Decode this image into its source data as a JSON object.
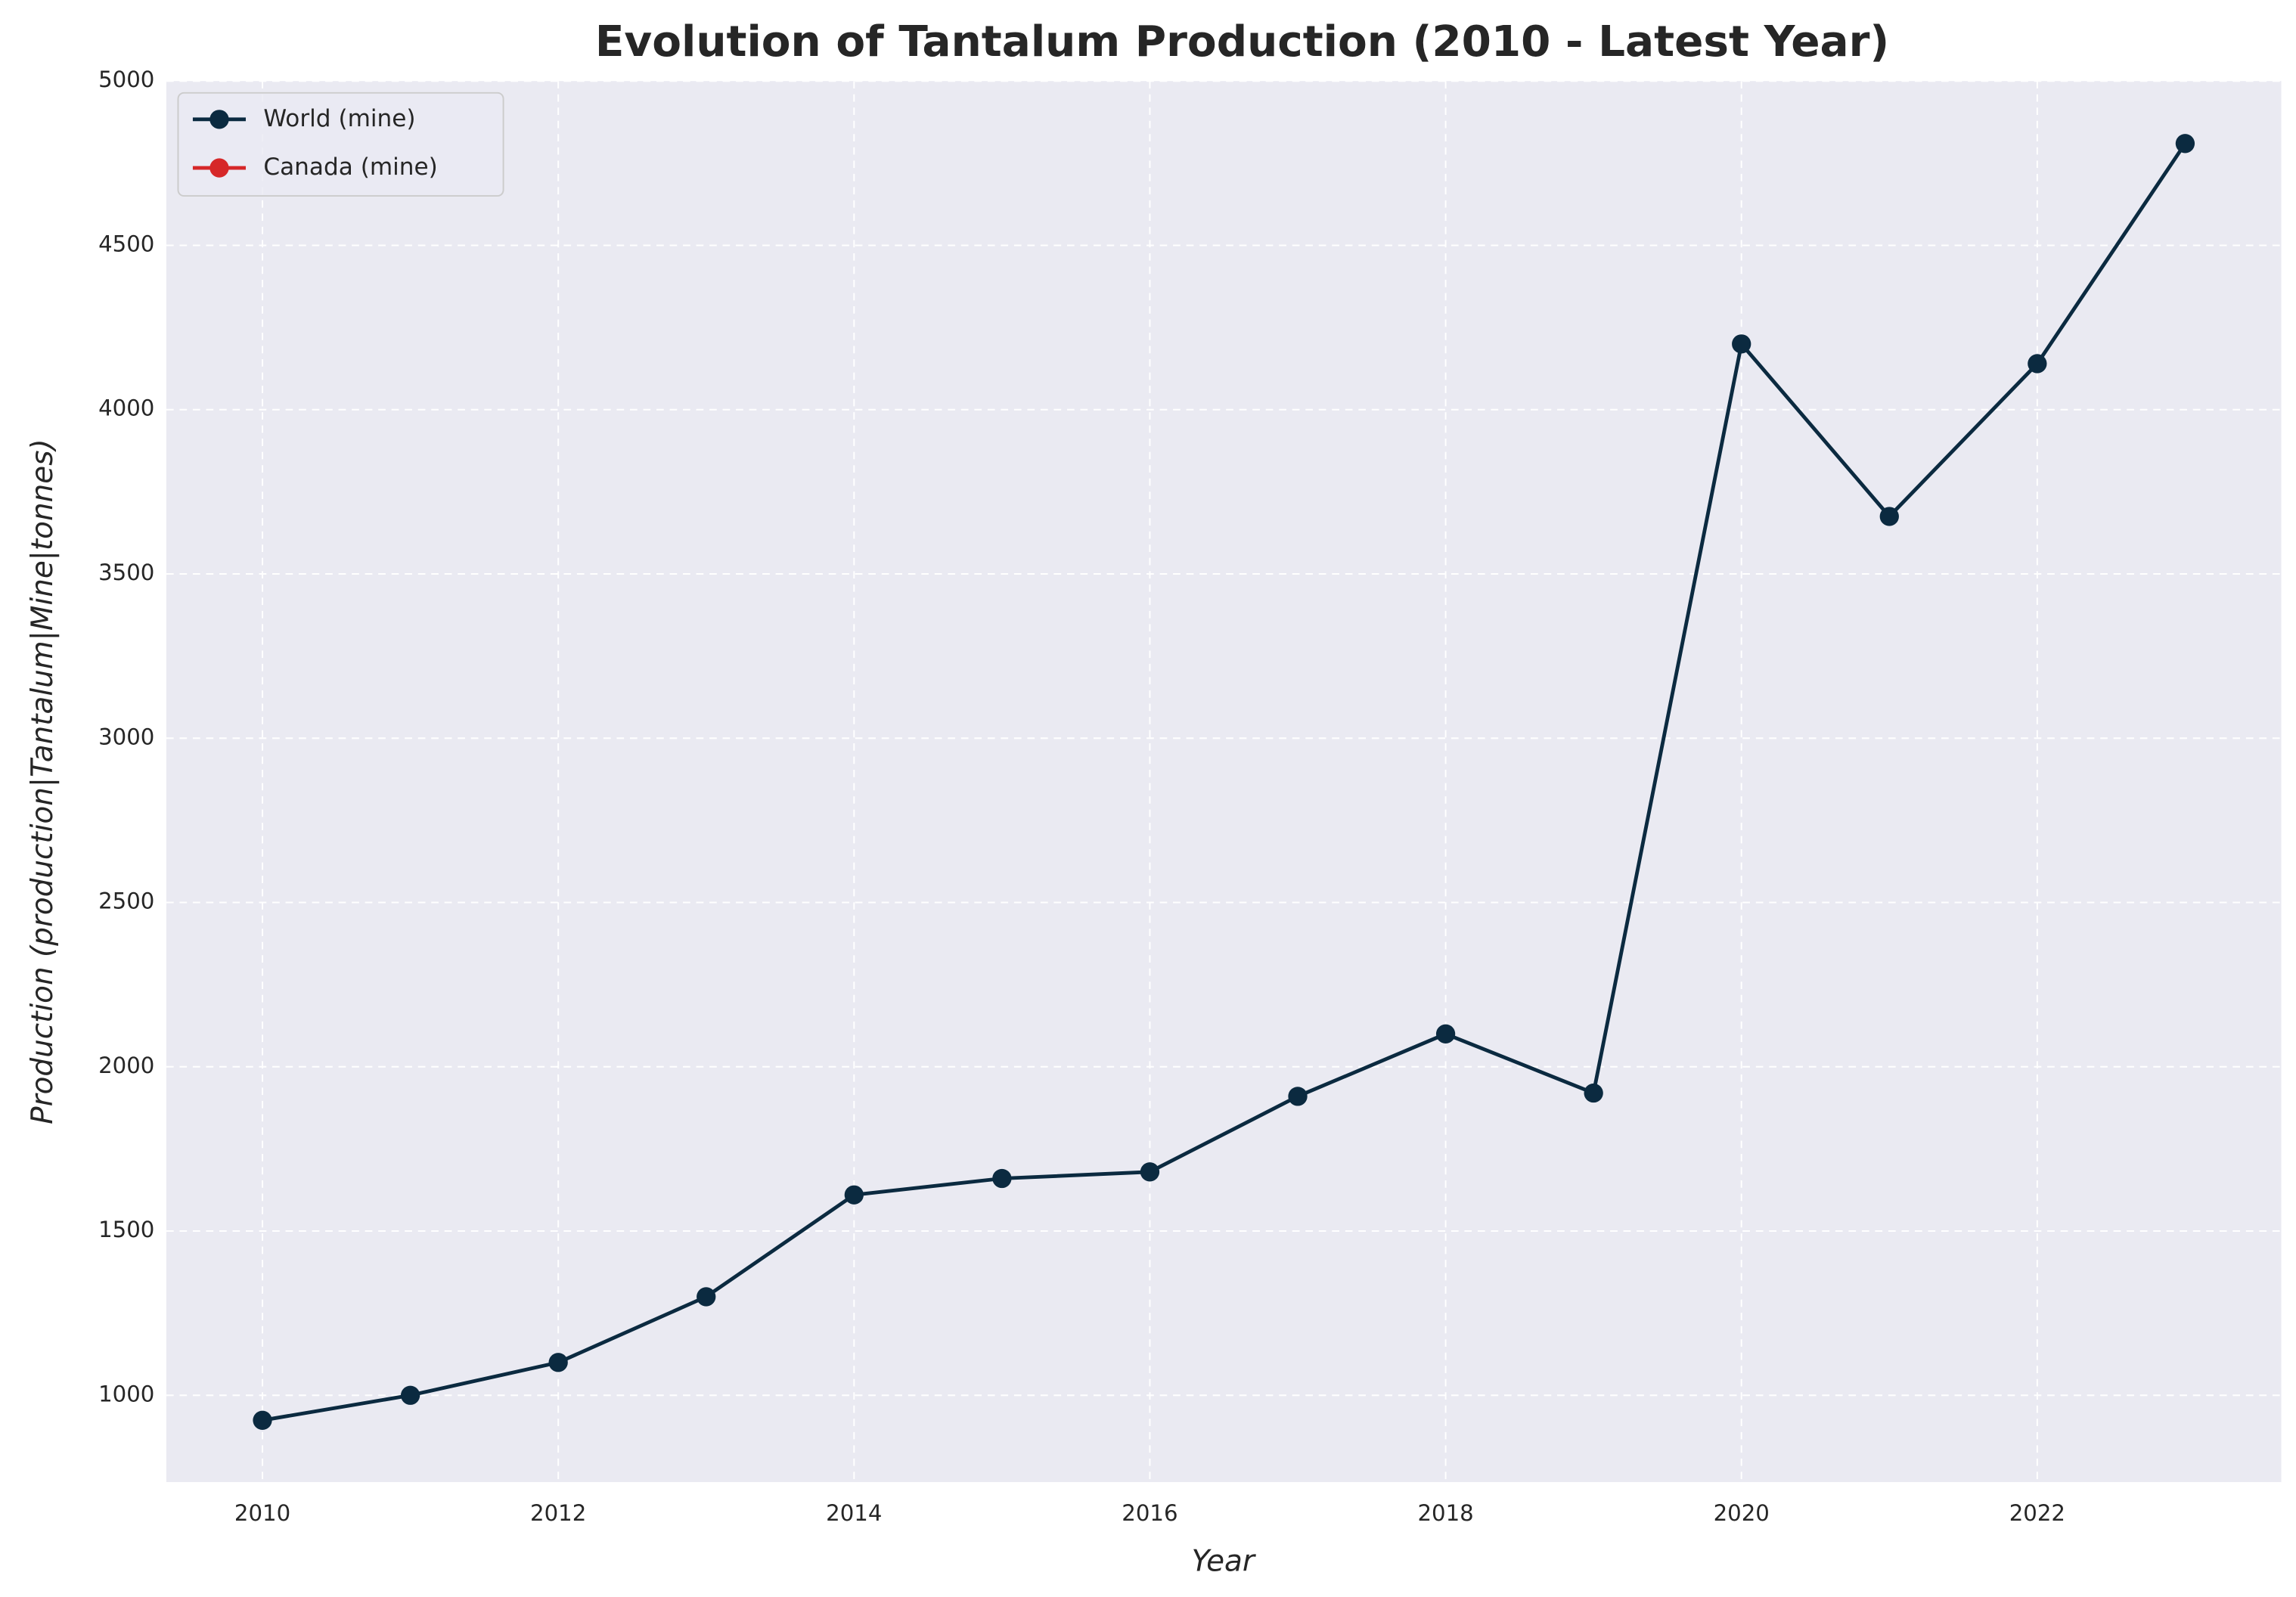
{
  "chart_data": {
    "type": "line",
    "title": "Evolution of Tantalum Production (2010 - Latest Year)",
    "xlabel": "Year",
    "ylabel": "Production (production|Tantalum|Mine|tonnes)",
    "x": [
      2010,
      2011,
      2012,
      2013,
      2014,
      2015,
      2016,
      2017,
      2018,
      2019,
      2020,
      2021,
      2022,
      2023
    ],
    "series": [
      {
        "name": "World (mine)",
        "color": "#0b2a40",
        "values": [
          924,
          1000,
          1100,
          1300,
          1610,
          1660,
          1680,
          1910,
          2100,
          1920,
          4200,
          3675,
          4140,
          4810
        ]
      },
      {
        "name": "Canada (mine)",
        "color": "#d62728",
        "values": [
          null,
          null,
          null,
          null,
          null,
          null,
          null,
          null,
          null,
          null,
          null,
          null,
          null,
          null
        ]
      }
    ],
    "xlim": [
      2009.35,
      2023.65
    ],
    "xticks": [
      2010,
      2012,
      2014,
      2016,
      2018,
      2020,
      2022
    ],
    "ylim": [
      736,
      5000
    ],
    "yticks": [
      1000,
      1500,
      2000,
      2500,
      3000,
      3500,
      4000,
      4500,
      5000
    ],
    "grid": true,
    "legend": "upper left"
  }
}
